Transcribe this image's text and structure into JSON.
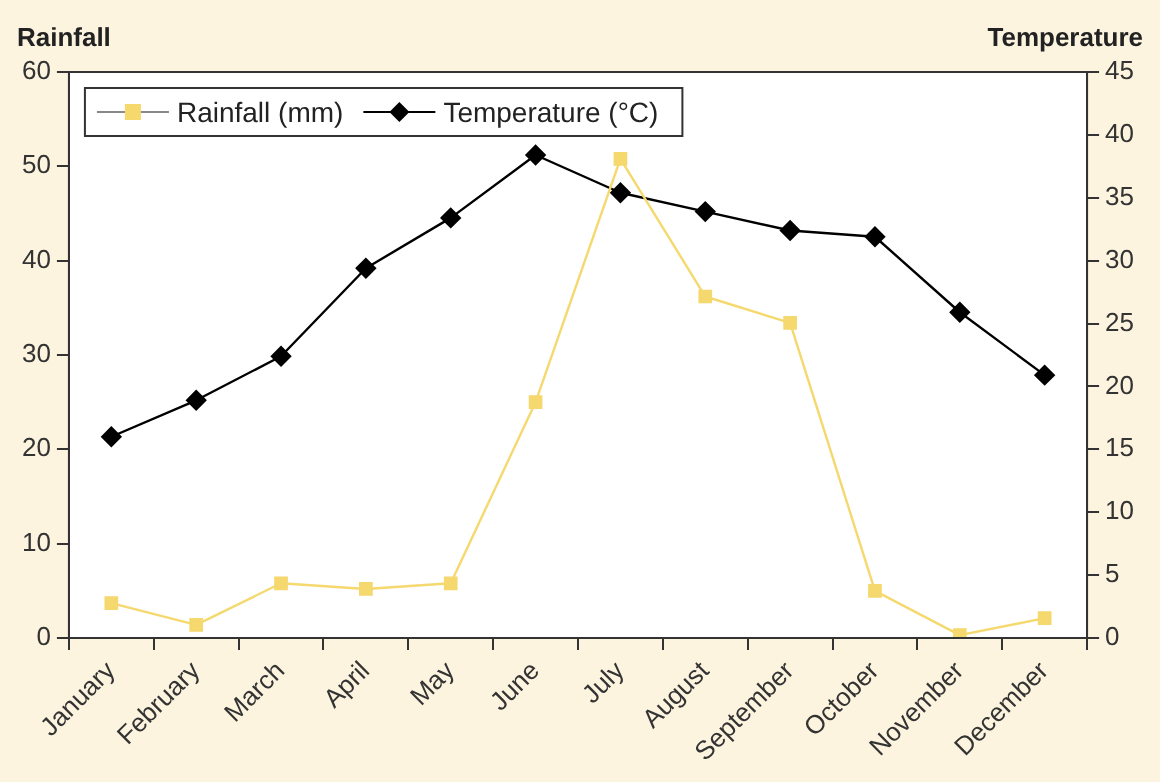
{
  "chart_data": {
    "type": "line",
    "ylabel": "Rainfall",
    "y2label": "Temperature",
    "categories": [
      "January",
      "February",
      "March",
      "April",
      "May",
      "June",
      "July",
      "August",
      "September",
      "October",
      "November",
      "December"
    ],
    "series": [
      {
        "name": "Rainfall (mm)",
        "color": "#f5d86e",
        "marker": "square",
        "values": [
          3.7,
          1.4,
          5.8,
          5.2,
          5.8,
          25.0,
          50.8,
          36.2,
          33.4,
          5.0,
          0.3,
          2.1
        ]
      },
      {
        "name": "Temperature (°C)",
        "color": "#000000",
        "marker": "diamond",
        "axis": "y2",
        "values": [
          16.0,
          18.9,
          22.4,
          29.4,
          33.4,
          38.4,
          35.4,
          33.9,
          32.4,
          31.9,
          25.9,
          20.9
        ]
      }
    ],
    "ylim": [
      0,
      60
    ],
    "yticks": [
      0,
      10,
      20,
      30,
      40,
      50,
      60
    ],
    "y2lim": [
      0,
      45
    ],
    "y2ticks": [
      0,
      5,
      10,
      15,
      20,
      25,
      30,
      35,
      40,
      45
    ],
    "grid": false,
    "legend": "top left"
  }
}
